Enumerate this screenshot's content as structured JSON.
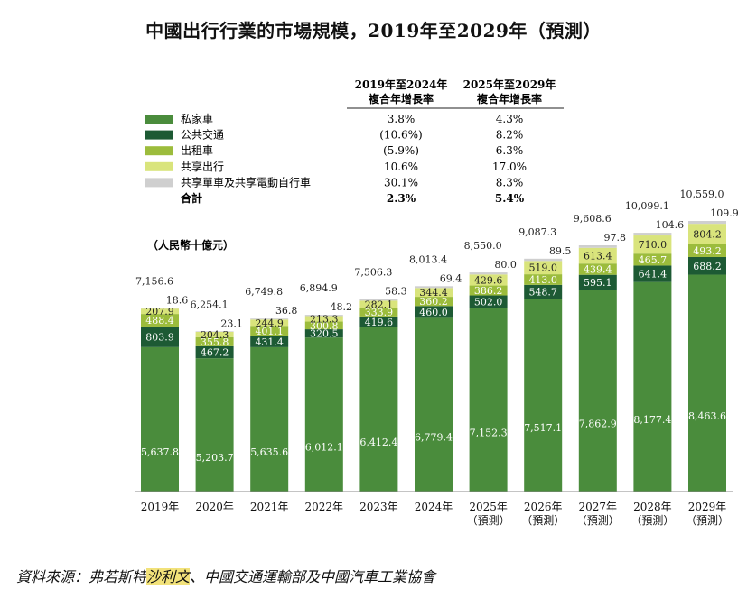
{
  "title": "中國出行行業的市場規模，2019年至2029年（預測）",
  "source": {
    "prefix": "資料來源：弗若斯特",
    "highlight": "沙利文",
    "suffix": "、中國交通運輸部及中國汽車工業協會"
  },
  "colors": {
    "private": "#4a8c3c",
    "public": "#1d5a34",
    "taxi": "#9cbc3c",
    "sharing": "#d9e47c",
    "bike": "#cfcfcf"
  },
  "chart_data": {
    "type": "bar",
    "stacked": true,
    "unit_label": "（人民幣十億元）",
    "categories": [
      [
        "2019年"
      ],
      [
        "2020年"
      ],
      [
        "2021年"
      ],
      [
        "2022年"
      ],
      [
        "2023年"
      ],
      [
        "2024年"
      ],
      [
        "2025年",
        "（預測）"
      ],
      [
        "2026年",
        "（預測）"
      ],
      [
        "2027年",
        "（預測）"
      ],
      [
        "2028年",
        "（預測）"
      ],
      [
        "2029年",
        "（預測）"
      ]
    ],
    "series": [
      {
        "name": "私家車",
        "color_key": "private",
        "values": [
          5637.8,
          5203.7,
          5635.6,
          6012.1,
          6412.4,
          6779.4,
          7152.3,
          7517.1,
          7862.9,
          8177.4,
          8463.6
        ]
      },
      {
        "name": "公共交通",
        "color_key": "public",
        "values": [
          803.9,
          467.2,
          431.4,
          320.5,
          419.6,
          460.0,
          502.0,
          548.7,
          595.1,
          641.4,
          688.2
        ]
      },
      {
        "name": "出租車",
        "color_key": "taxi",
        "values": [
          488.4,
          355.8,
          401.1,
          300.8,
          333.9,
          360.2,
          386.2,
          413.0,
          439.4,
          465.7,
          493.2
        ]
      },
      {
        "name": "共享出行",
        "color_key": "sharing",
        "values": [
          207.9,
          204.3,
          244.9,
          213.3,
          282.1,
          344.4,
          429.6,
          519.0,
          613.4,
          710.0,
          804.2
        ]
      },
      {
        "name": "共享單車及共享電動自行車",
        "color_key": "bike",
        "values": [
          18.6,
          23.1,
          36.8,
          48.2,
          58.3,
          69.4,
          80.0,
          89.5,
          97.8,
          104.6,
          109.9
        ]
      }
    ],
    "value_labels": [
      [
        "5,637.8",
        "5,203.7",
        "5,635.6",
        "6,012.1",
        "6,412.4",
        "6,779.4",
        "7,152.3",
        "7,517.1",
        "7,862.9",
        "8,177.4",
        "8,463.6"
      ],
      [
        "803.9",
        "467.2",
        "431.4",
        "320.5",
        "419.6",
        "460.0",
        "502.0",
        "548.7",
        "595.1",
        "641.4",
        "688.2"
      ],
      [
        "488.4",
        "355.8",
        "401.1",
        "300.8",
        "333.9",
        "360.2",
        "386.2",
        "413.0",
        "439.4",
        "465.7",
        "493.2"
      ],
      [
        "207.9",
        "204.3",
        "244.9",
        "213.3",
        "282.1",
        "344.4",
        "429.6",
        "519.0",
        "613.4",
        "710.0",
        "804.2"
      ],
      [
        "18.6",
        "23.1",
        "36.8",
        "48.2",
        "58.3",
        "69.4",
        "80.0",
        "89.5",
        "97.8",
        "104.6",
        "109.9"
      ]
    ],
    "totals": [
      "7,156.6",
      "6,254.1",
      "6,749.8",
      "6,894.9",
      "7,506.3",
      "8,013.4",
      "8,550.0",
      "9,087.3",
      "9,608.6",
      "10,099.1",
      "10,559.0"
    ],
    "cagr_table": {
      "headers": [
        [
          "2019年至2024年",
          "複合年增長率"
        ],
        [
          "2025年至2029年",
          "複合年增長率"
        ]
      ],
      "rows": [
        {
          "label": "私家車",
          "color_key": "private",
          "c1": "3.8%",
          "c2": "4.3%"
        },
        {
          "label": "公共交通",
          "color_key": "public",
          "c1": "(10.6%)",
          "c2": "8.2%"
        },
        {
          "label": "出租車",
          "color_key": "taxi",
          "c1": "(5.9%)",
          "c2": "6.3%"
        },
        {
          "label": "共享出行",
          "color_key": "sharing",
          "c1": "10.6%",
          "c2": "17.0%"
        },
        {
          "label": "共享單車及共享電動自行車",
          "color_key": "bike",
          "c1": "30.1%",
          "c2": "8.3%"
        },
        {
          "label": "合計",
          "color_key": "",
          "c1": "2.3%",
          "c2": "5.4%"
        }
      ]
    }
  }
}
